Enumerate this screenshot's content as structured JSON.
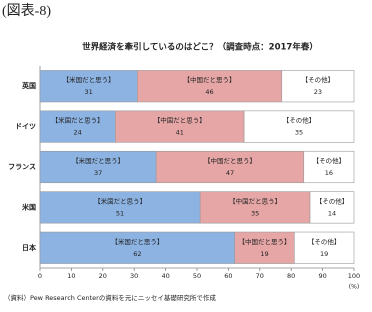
{
  "chart_data": {
    "type": "stacked-bar-horizontal",
    "figure_label": "(図表-8)",
    "title": "世界経済を牽引しているのはどこ？（調査時点：2017年春）",
    "categories": [
      "英国",
      "ドイツ",
      "フランス",
      "米国",
      "日本"
    ],
    "series": [
      {
        "name": "【米国だと思う】",
        "color": "#8db3e2",
        "values": [
          31,
          24,
          37,
          51,
          62
        ]
      },
      {
        "name": "【中国だと思う】",
        "color": "#e6a6a6",
        "values": [
          46,
          41,
          47,
          35,
          19
        ]
      },
      {
        "name": "【その他】",
        "color": "#ffffff",
        "values": [
          23,
          35,
          16,
          14,
          19
        ]
      }
    ],
    "xlim": [
      0,
      100
    ],
    "xticks": [
      0,
      10,
      20,
      30,
      40,
      50,
      60,
      70,
      80,
      90,
      100
    ],
    "x_unit": "(%)",
    "source": "（資料）Pew Research Centerの資料を元にニッセイ基礎研究所で作成"
  }
}
